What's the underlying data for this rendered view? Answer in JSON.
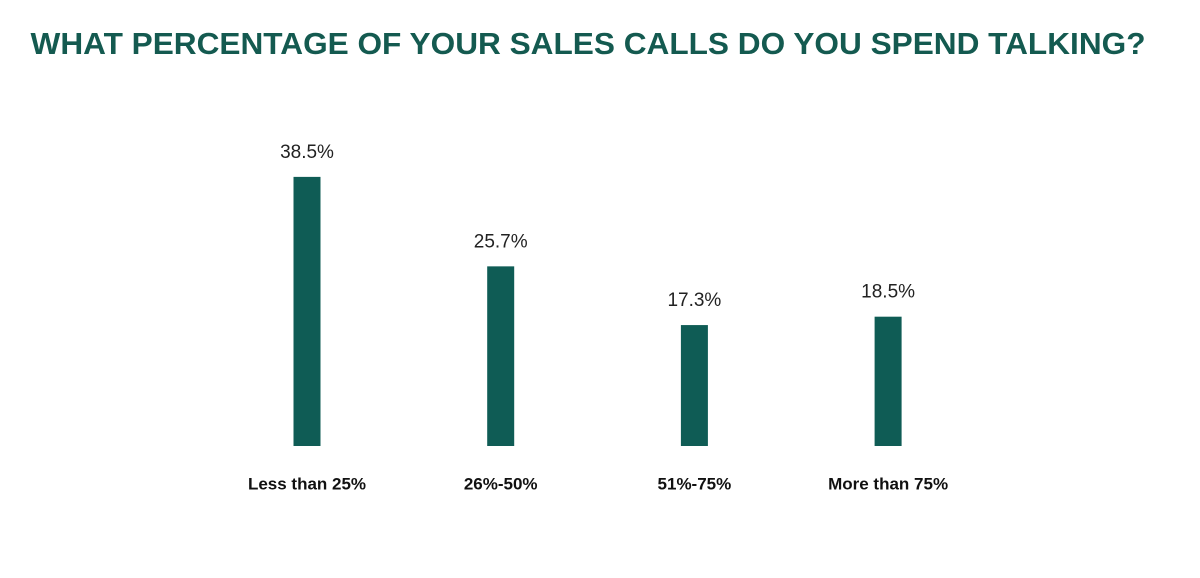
{
  "chart_data": {
    "type": "bar",
    "title": "WHAT PERCENTAGE OF YOUR SALES CALLS DO YOU SPEND TALKING?",
    "categories": [
      "Less than 25%",
      "26%-50%",
      "51%-75%",
      "More than 75%"
    ],
    "values": [
      38.5,
      25.7,
      17.3,
      18.5
    ],
    "value_labels": [
      "38.5%",
      "25.7%",
      "17.3%",
      "18.5%"
    ],
    "color": "#0f5c55"
  }
}
